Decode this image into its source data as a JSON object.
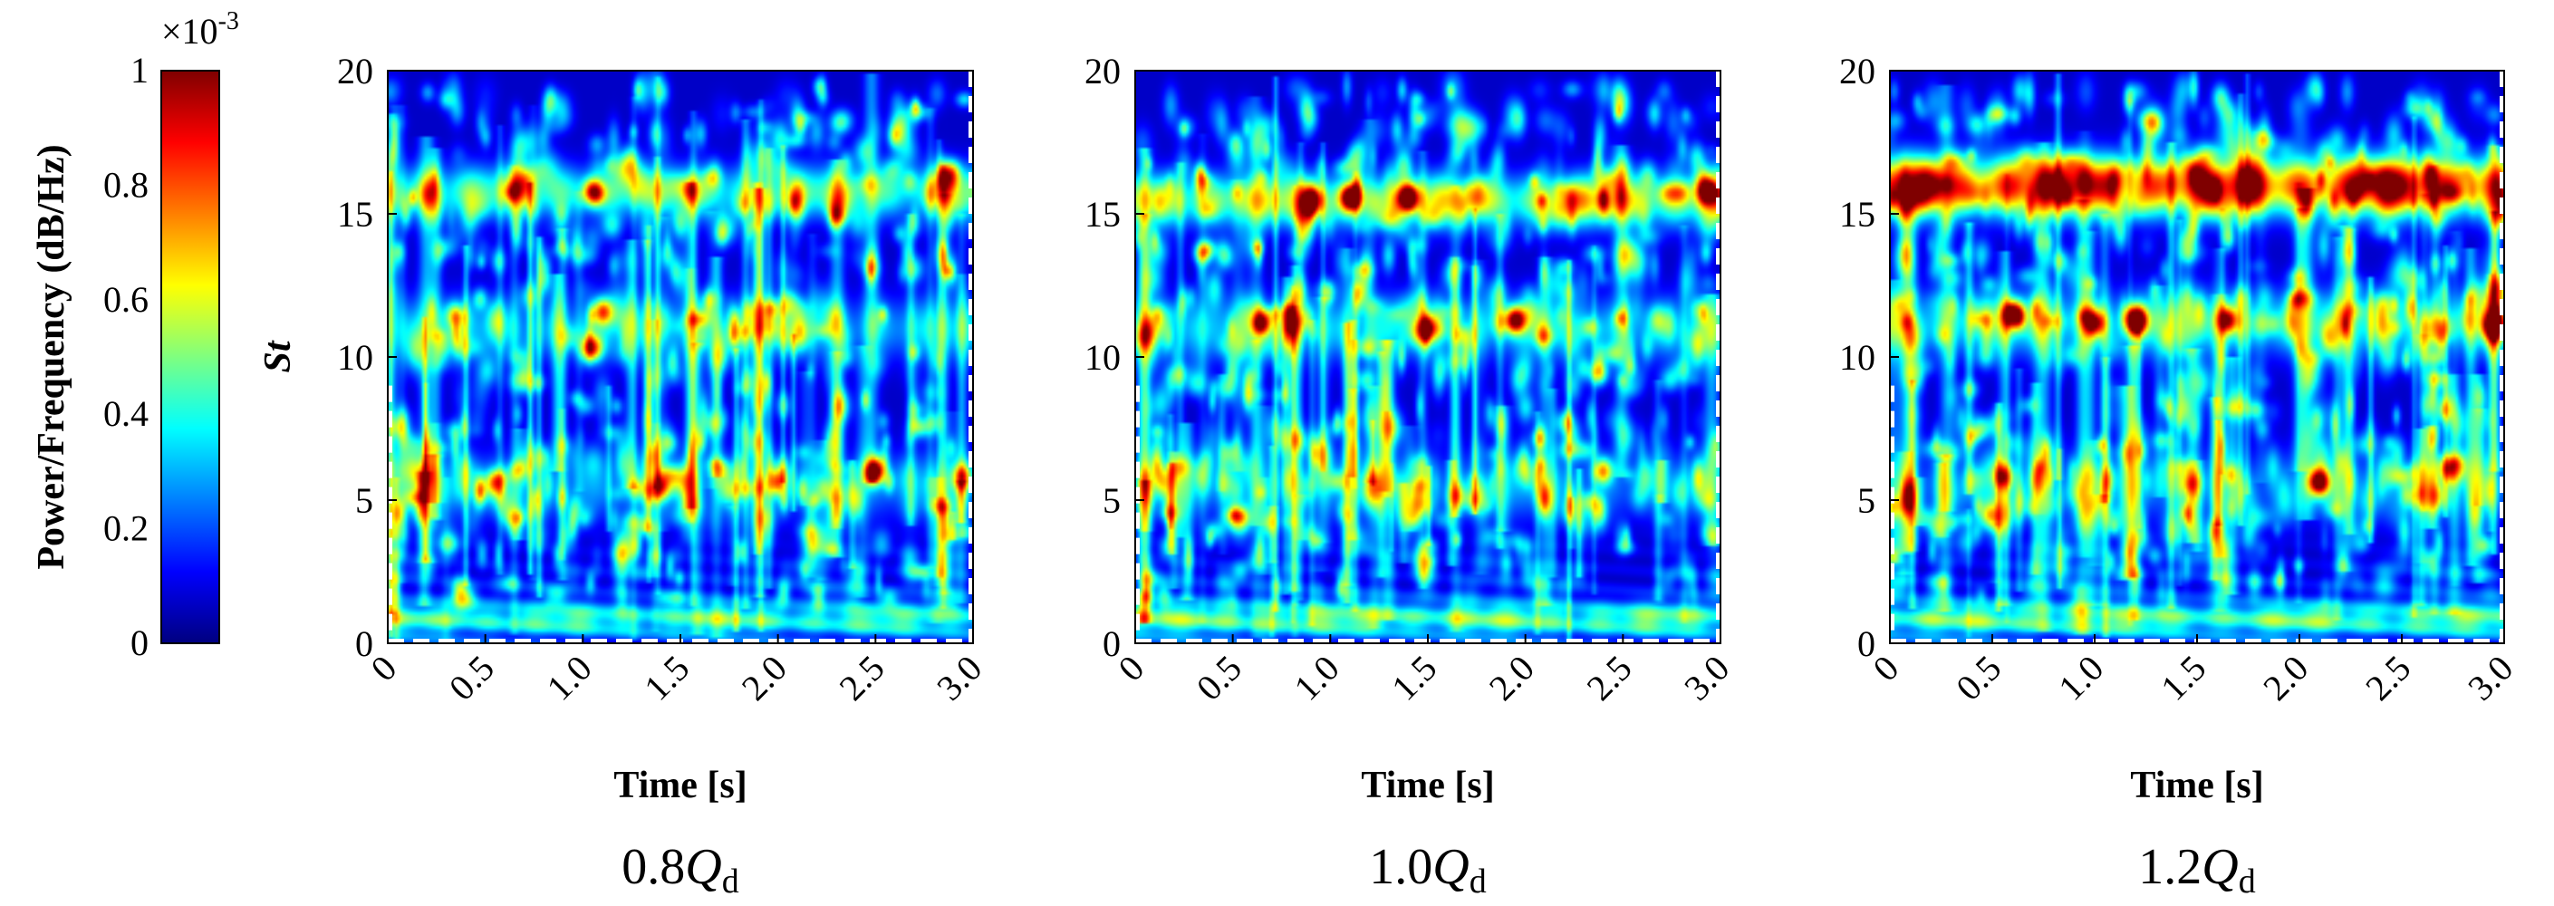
{
  "colors": {
    "jet": [
      "#00007f",
      "#0000ff",
      "#007fff",
      "#00ffff",
      "#7fff7f",
      "#ffff00",
      "#ff7f00",
      "#ff0000",
      "#7f0000"
    ],
    "axis": "#000000",
    "background": "#ffffff"
  },
  "chart_data": [
    {
      "type": "heatmap",
      "title": "",
      "caption": {
        "main": "0.8",
        "italic": "Q",
        "sub": "d"
      },
      "xlabel": "Time [s]",
      "ylabel": "St",
      "xlim": [
        0,
        3.0
      ],
      "ylim": [
        0,
        20
      ],
      "xticks": [
        "0",
        "0.5",
        "1.0",
        "1.5",
        "2.0",
        "2.5",
        "3.0"
      ],
      "yticks": [
        "0",
        "5",
        "10",
        "15",
        "20"
      ],
      "colorbar": {
        "label": "Power/Frequency (dB/Hz)",
        "multiplier": "×10",
        "exponent": "-3",
        "ticks": [
          "0",
          "0.2",
          "0.4",
          "0.6",
          "0.8",
          "1"
        ],
        "range": [
          0,
          1
        ]
      },
      "bands": [
        {
          "st": 15.8,
          "power": 0.48,
          "width": 0.9
        },
        {
          "st": 11.0,
          "power": 0.3,
          "width": 1.1
        },
        {
          "st": 5.5,
          "power": 0.22,
          "width": 1.2
        },
        {
          "st": 0.8,
          "power": 0.4,
          "width": 0.6
        }
      ],
      "hotspots": [
        {
          "t": 2.5,
          "st": 6.0,
          "power": 0.85
        },
        {
          "t": 0.55,
          "st": 5.6,
          "power": 0.55
        },
        {
          "t": 1.05,
          "st": 10.3,
          "power": 0.6
        },
        {
          "t": 1.1,
          "st": 11.6,
          "power": 0.55
        },
        {
          "t": 1.05,
          "st": 15.8,
          "power": 0.65
        },
        {
          "t": 2.95,
          "st": 5.8,
          "power": 0.5
        },
        {
          "t": 1.4,
          "st": 5.5,
          "power": 0.45
        },
        {
          "t": 2.0,
          "st": 5.6,
          "power": 0.5
        }
      ]
    },
    {
      "type": "heatmap",
      "title": "",
      "caption": {
        "main": "1.0",
        "italic": "Q",
        "sub": "d"
      },
      "xlabel": "Time [s]",
      "ylabel": "",
      "xlim": [
        0,
        3.0
      ],
      "ylim": [
        0,
        20
      ],
      "xticks": [
        "0",
        "0.5",
        "1.0",
        "1.5",
        "2.0",
        "2.5",
        "3.0"
      ],
      "yticks": [
        "0",
        "5",
        "10",
        "15",
        "20"
      ],
      "bands": [
        {
          "st": 15.5,
          "power": 0.6,
          "width": 0.9
        },
        {
          "st": 11.0,
          "power": 0.32,
          "width": 1.1
        },
        {
          "st": 5.5,
          "power": 0.22,
          "width": 1.2
        },
        {
          "st": 0.8,
          "power": 0.45,
          "width": 0.6
        }
      ],
      "hotspots": [
        {
          "t": 1.4,
          "st": 15.6,
          "power": 0.85
        },
        {
          "t": 1.95,
          "st": 11.3,
          "power": 0.8
        },
        {
          "t": 0.65,
          "st": 11.2,
          "power": 0.65
        },
        {
          "t": 1.5,
          "st": 11.0,
          "power": 0.55
        },
        {
          "t": 1.1,
          "st": 15.6,
          "power": 0.75
        },
        {
          "t": 2.95,
          "st": 15.8,
          "power": 0.7
        },
        {
          "t": 2.4,
          "st": 6.0,
          "power": 0.55
        },
        {
          "t": 0.9,
          "st": 15.5,
          "power": 0.7
        }
      ]
    },
    {
      "type": "heatmap",
      "title": "",
      "caption": {
        "main": "1.2",
        "italic": "Q",
        "sub": "d"
      },
      "xlabel": "Time [s]",
      "ylabel": "",
      "xlim": [
        0,
        3.0
      ],
      "ylim": [
        0,
        20
      ],
      "xticks": [
        "0",
        "0.5",
        "1.0",
        "1.5",
        "2.0",
        "2.5",
        "3.0"
      ],
      "yticks": [
        "0",
        "5",
        "10",
        "15",
        "20"
      ],
      "bands": [
        {
          "st": 16.0,
          "power": 1.0,
          "width": 1.0
        },
        {
          "st": 11.2,
          "power": 0.42,
          "width": 1.1
        },
        {
          "st": 5.5,
          "power": 0.22,
          "width": 1.2
        },
        {
          "st": 0.8,
          "power": 0.45,
          "width": 0.6
        }
      ],
      "hotspots": [
        {
          "t": 0.6,
          "st": 11.5,
          "power": 0.85
        },
        {
          "t": 1.2,
          "st": 11.3,
          "power": 0.9
        },
        {
          "t": 2.1,
          "st": 5.6,
          "power": 0.85
        },
        {
          "t": 1.0,
          "st": 11.2,
          "power": 0.6
        },
        {
          "t": 1.65,
          "st": 11.3,
          "power": 0.6
        },
        {
          "t": 2.95,
          "st": 11.1,
          "power": 0.6
        },
        {
          "t": 0.55,
          "st": 5.8,
          "power": 0.5
        }
      ]
    }
  ]
}
